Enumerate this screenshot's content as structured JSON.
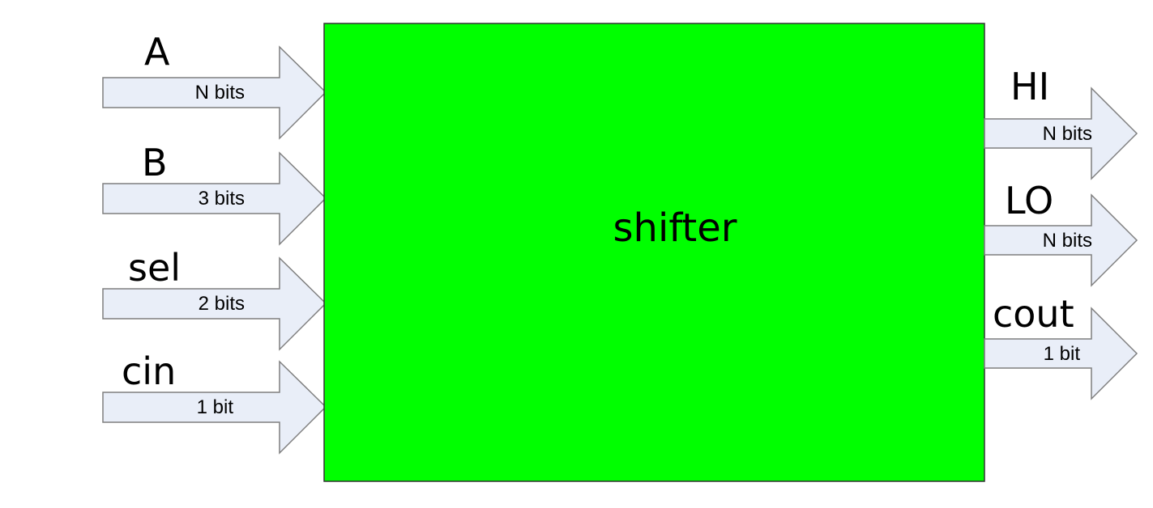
{
  "block": {
    "label": "shifter",
    "color": "#00ff00"
  },
  "arrow_color": "#e9eef8",
  "inputs": [
    {
      "name": "A",
      "width": "N bits"
    },
    {
      "name": "B",
      "width": "3 bits"
    },
    {
      "name": "sel",
      "width": "2 bits"
    },
    {
      "name": "cin",
      "width": "1 bit"
    }
  ],
  "outputs": [
    {
      "name": "HI",
      "width": "N bits"
    },
    {
      "name": "LO",
      "width": "N bits"
    },
    {
      "name": "cout",
      "width": "1 bit"
    }
  ]
}
